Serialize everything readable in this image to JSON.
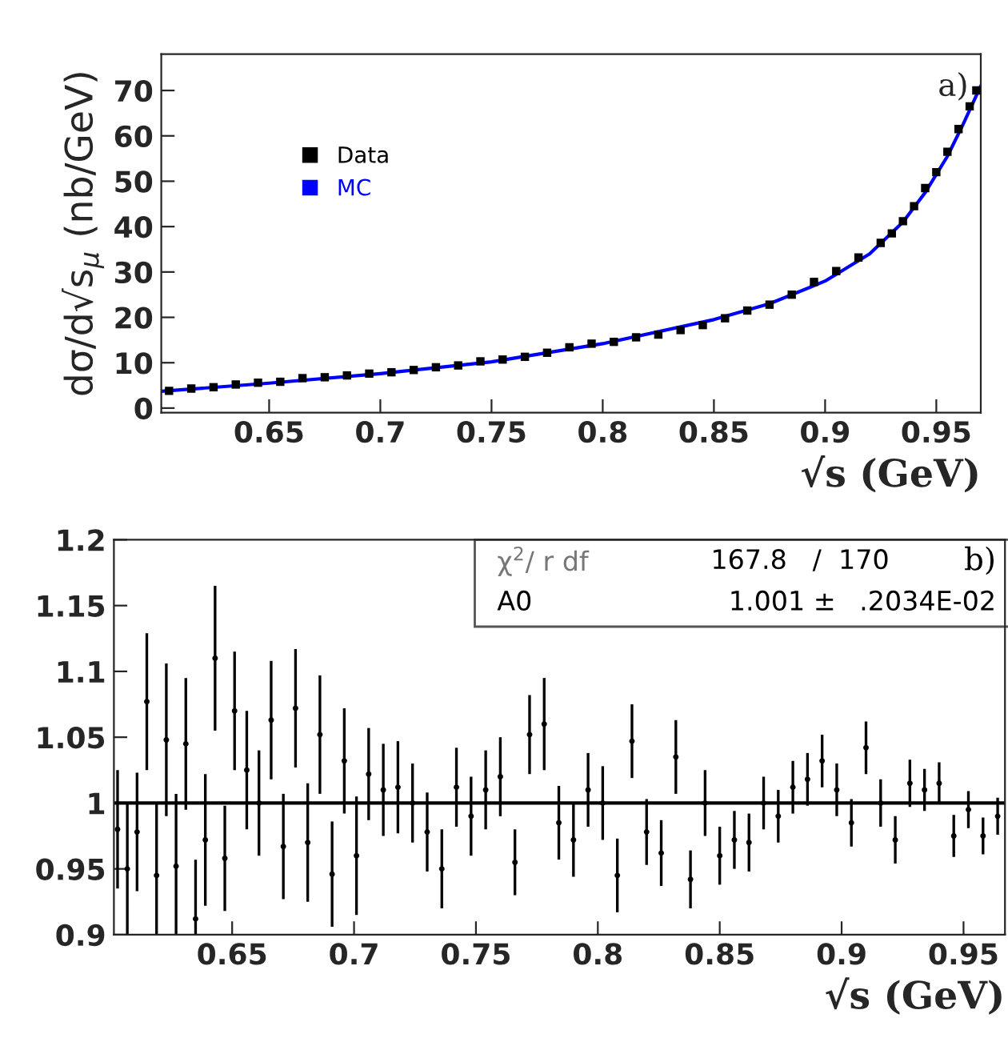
{
  "chart_data": [
    {
      "type": "scatter",
      "xlabel": "√s (GeV)",
      "ylabel": "dσ/d√s$_{μ}$ (nb/GeV)",
      "xlim": [
        0.6015,
        0.97
      ],
      "ylim": [
        -1,
        78
      ],
      "xticks": [
        0.65,
        0.7,
        0.75,
        0.8,
        0.85,
        0.9,
        0.95
      ],
      "yticks": [
        0,
        10,
        20,
        30,
        40,
        50,
        60,
        70
      ],
      "legend": "top left",
      "annotations": [
        "a)"
      ],
      "series": [
        {
          "name": "Data",
          "color": "#000000",
          "marker": "square",
          "x": [
            0.605,
            0.615,
            0.625,
            0.635,
            0.645,
            0.655,
            0.665,
            0.675,
            0.685,
            0.695,
            0.705,
            0.715,
            0.725,
            0.735,
            0.745,
            0.755,
            0.765,
            0.775,
            0.785,
            0.795,
            0.805,
            0.815,
            0.825,
            0.835,
            0.845,
            0.855,
            0.865,
            0.875,
            0.885,
            0.895,
            0.905,
            0.915,
            0.925,
            0.93,
            0.935,
            0.94,
            0.945,
            0.95,
            0.955,
            0.96,
            0.965,
            0.968
          ],
          "values": [
            3.8,
            4.3,
            4.6,
            5.2,
            5.6,
            5.8,
            6.6,
            6.8,
            7.2,
            7.6,
            7.9,
            8.4,
            9.0,
            9.4,
            10.3,
            10.7,
            11.3,
            12.2,
            13.4,
            14.2,
            14.6,
            15.6,
            16.2,
            17.2,
            18.3,
            19.8,
            21.5,
            22.8,
            25.0,
            27.8,
            30.2,
            33.2,
            36.4,
            38.5,
            41.2,
            44.5,
            48.5,
            52.0,
            56.5,
            61.5,
            66.5,
            70.0
          ]
        },
        {
          "name": "MC",
          "type": "line",
          "color": "#0000ff",
          "x": [
            0.6015,
            0.65,
            0.7,
            0.75,
            0.8,
            0.85,
            0.875,
            0.9,
            0.92,
            0.935,
            0.945,
            0.955,
            0.962,
            0.97
          ],
          "values": [
            3.7,
            5.5,
            7.6,
            10.2,
            14.2,
            19.5,
            23.0,
            28.0,
            34.0,
            41.0,
            47.5,
            55.5,
            62.5,
            71.0
          ]
        }
      ]
    },
    {
      "type": "scatter",
      "xlabel": "√s (GeV)",
      "xlim": [
        0.6015,
        0.967
      ],
      "ylim": [
        0.9,
        1.2
      ],
      "xticks": [
        0.65,
        0.7,
        0.75,
        0.8,
        0.85,
        0.9,
        0.95
      ],
      "yticks": [
        0.9,
        0.95,
        1,
        1.05,
        1.1,
        1.15,
        1.2
      ],
      "annotations": [
        "χ$^{2}$/ r df",
        "167.8   /  170",
        "A0",
        "1.001 ±",
        ".2034E-02",
        "b)"
      ],
      "ref_lines": [
        {
          "axis": "y",
          "value": 1,
          "color": "#000000"
        }
      ],
      "series": [
        {
          "color": "#000000",
          "marker": "circle",
          "x": [
            0.603,
            0.607,
            0.611,
            0.615,
            0.619,
            0.623,
            0.627,
            0.631,
            0.635,
            0.639,
            0.643,
            0.647,
            0.651,
            0.656,
            0.661,
            0.666,
            0.671,
            0.676,
            0.681,
            0.686,
            0.691,
            0.696,
            0.701,
            0.706,
            0.712,
            0.718,
            0.724,
            0.73,
            0.736,
            0.742,
            0.748,
            0.754,
            0.76,
            0.766,
            0.772,
            0.778,
            0.784,
            0.79,
            0.796,
            0.802,
            0.808,
            0.814,
            0.82,
            0.826,
            0.832,
            0.838,
            0.844,
            0.85,
            0.856,
            0.862,
            0.868,
            0.874,
            0.88,
            0.886,
            0.892,
            0.898,
            0.904,
            0.91,
            0.916,
            0.922,
            0.928,
            0.934,
            0.94,
            0.946,
            0.952,
            0.958,
            0.964
          ],
          "values": [
            0.98,
            0.95,
            0.978,
            1.077,
            0.945,
            1.048,
            0.952,
            1.045,
            0.912,
            0.972,
            1.11,
            0.958,
            1.07,
            1.025,
            1.0,
            1.063,
            0.967,
            1.072,
            0.97,
            1.052,
            0.946,
            1.032,
            0.96,
            1.022,
            1.01,
            1.012,
            1.0,
            0.978,
            0.95,
            1.012,
            0.99,
            1.01,
            1.02,
            0.955,
            1.052,
            1.06,
            0.985,
            0.972,
            1.01,
            1.0,
            0.945,
            1.047,
            0.978,
            0.962,
            1.035,
            0.942,
            1.0,
            0.96,
            0.972,
            0.97,
            1.0,
            0.99,
            1.012,
            1.018,
            1.032,
            1.01,
            0.985,
            1.042,
            1.0,
            0.972,
            1.015,
            1.01,
            1.015,
            0.975,
            0.995,
            0.975,
            0.99
          ],
          "errors": [
            0.045,
            0.05,
            0.045,
            0.052,
            0.055,
            0.058,
            0.055,
            0.05,
            0.045,
            0.05,
            0.055,
            0.04,
            0.045,
            0.045,
            0.04,
            0.045,
            0.04,
            0.045,
            0.045,
            0.045,
            0.04,
            0.04,
            0.045,
            0.035,
            0.035,
            0.035,
            0.03,
            0.03,
            0.03,
            0.03,
            0.03,
            0.03,
            0.03,
            0.025,
            0.03,
            0.035,
            0.028,
            0.028,
            0.028,
            0.028,
            0.028,
            0.028,
            0.025,
            0.025,
            0.028,
            0.022,
            0.025,
            0.022,
            0.022,
            0.022,
            0.02,
            0.02,
            0.02,
            0.02,
            0.02,
            0.02,
            0.018,
            0.02,
            0.018,
            0.018,
            0.018,
            0.016,
            0.016,
            0.016,
            0.014,
            0.014,
            0.014
          ]
        }
      ]
    }
  ]
}
